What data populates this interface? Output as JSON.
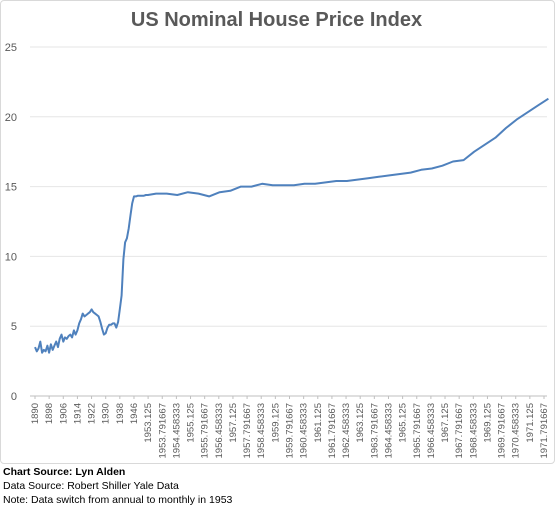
{
  "chart_data": {
    "type": "line",
    "title": "US Nominal House Price Index",
    "xlabel": "",
    "ylabel": "",
    "ylim": [
      0,
      25
    ],
    "yticks": [
      0,
      5,
      10,
      15,
      20,
      25
    ],
    "grid": true,
    "legend": "none",
    "line_color": "#4f81bd",
    "x_tick_labels": [
      "1890",
      "1898",
      "1906",
      "1914",
      "1922",
      "1930",
      "1938",
      "1946",
      "1953.125",
      "1953.791667",
      "1954.458333",
      "1955.125",
      "1955.791667",
      "1956.458333",
      "1957.125",
      "1957.791667",
      "1958.458333",
      "1959.125",
      "1959.791667",
      "1960.458333",
      "1961.125",
      "1961.791667",
      "1962.458333",
      "1963.125",
      "1963.791667",
      "1964.458333",
      "1965.125",
      "1965.791667",
      "1966.458333",
      "1967.125",
      "1967.791667",
      "1968.458333",
      "1969.125",
      "1969.791667",
      "1970.458333",
      "1971.125",
      "1971.791667"
    ],
    "series": [
      {
        "x": [
          1890,
          1891,
          1892,
          1893,
          1894,
          1895,
          1896,
          1897,
          1898,
          1899,
          1900,
          1901,
          1902,
          1903,
          1904,
          1905,
          1906,
          1907,
          1908,
          1909,
          1910,
          1911,
          1912,
          1913,
          1914,
          1915,
          1916,
          1917,
          1918,
          1919,
          1920,
          1921,
          1922,
          1923,
          1924,
          1925,
          1926,
          1927,
          1928,
          1929,
          1930,
          1931,
          1932,
          1933,
          1934,
          1935,
          1936,
          1937,
          1938,
          1939,
          1940,
          1941,
          1942,
          1943,
          1944,
          1945,
          1946,
          1947,
          1948,
          1949,
          1950,
          1951,
          1952,
          1953.0,
          1953.5,
          1954.0,
          1954.5,
          1955.0,
          1955.5,
          1956.0,
          1956.5,
          1957.0,
          1957.5,
          1958.0,
          1958.5,
          1959.0,
          1959.5,
          1960.0,
          1960.5,
          1961.0,
          1961.5,
          1962.0,
          1962.5,
          1963.0,
          1963.5,
          1964.0,
          1964.5,
          1965.0,
          1965.5,
          1966.0,
          1966.5,
          1967.0,
          1967.5,
          1968.0,
          1968.5,
          1969.0,
          1969.5,
          1970.0,
          1970.5,
          1971.0,
          1971.5,
          1972.0
        ],
        "values": [
          3.5,
          3.2,
          3.4,
          3.9,
          3.1,
          3.3,
          3.2,
          3.6,
          3.1,
          3.7,
          3.3,
          3.6,
          3.9,
          3.5,
          4.1,
          4.4,
          3.9,
          4.2,
          4.1,
          4.3,
          4.4,
          4.2,
          4.7,
          4.4,
          4.7,
          5.2,
          5.5,
          5.9,
          5.7,
          5.8,
          5.9,
          6.0,
          6.2,
          6.0,
          5.9,
          5.8,
          5.7,
          5.3,
          4.8,
          4.4,
          4.5,
          4.9,
          5.1,
          5.1,
          5.2,
          5.2,
          4.9,
          5.3,
          6.2,
          7.2,
          9.8,
          11.0,
          11.3,
          12.0,
          12.9,
          13.8,
          14.3,
          14.3,
          14.35,
          14.35,
          14.35,
          14.35,
          14.4,
          14.4,
          14.5,
          14.5,
          14.4,
          14.6,
          14.5,
          14.3,
          14.6,
          14.7,
          15.0,
          15.0,
          15.2,
          15.1,
          15.1,
          15.1,
          15.2,
          15.2,
          15.3,
          15.4,
          15.4,
          15.5,
          15.6,
          15.7,
          15.8,
          15.9,
          16.0,
          16.2,
          16.3,
          16.5,
          16.8,
          16.9,
          17.5,
          18.0,
          18.5,
          19.2,
          19.8,
          20.3,
          20.8,
          21.3
        ]
      }
    ]
  },
  "footer": {
    "chart_source": "Chart Source: Lyn Alden",
    "data_source": "Data Source: Robert Shiller Yale Data",
    "note": "Note: Data switch from annual to monthly in 1953"
  }
}
